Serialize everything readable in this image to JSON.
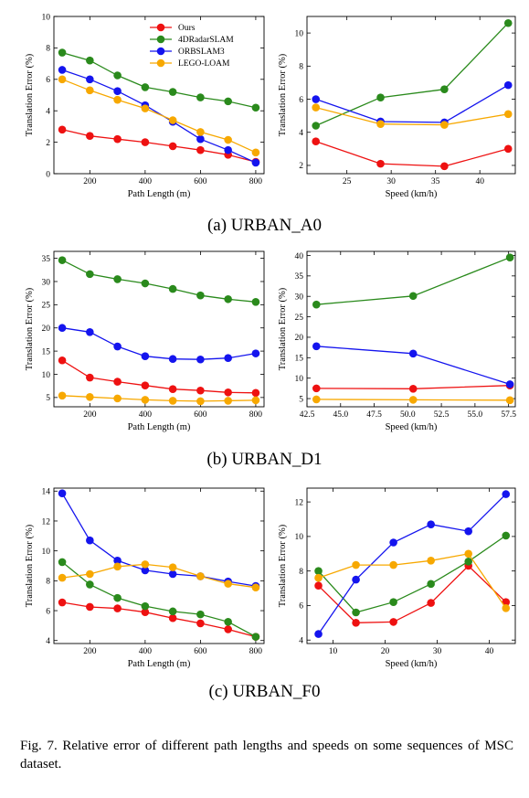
{
  "panel_captions": [
    "(a) URBAN_A0",
    "(b) URBAN_D1",
    "(c) URBAN_F0"
  ],
  "figure_caption": "Fig. 7. Relative error of different path lengths and speeds on some sequences of MSC dataset.",
  "colors": {
    "Ours": "#ee1111",
    "4DRadarSLAM": "#2a8a1c",
    "ORBSLAM3": "#1414ee",
    "LEGO-LOAM": "#f7a800"
  },
  "chart_data": [
    {
      "type": "line",
      "title": "",
      "xlabel": "Path Length (m)",
      "ylabel": "Translation Error (%)",
      "xlim": [
        70,
        830
      ],
      "ylim": [
        0,
        10
      ],
      "xticks": [
        200,
        400,
        600,
        800
      ],
      "yticks": [
        0,
        2,
        4,
        6,
        8,
        10
      ],
      "xticklabels": [
        "200",
        "400",
        "600",
        "800"
      ],
      "yticklabels": [
        "0",
        "2",
        "4",
        "6",
        "8",
        "10"
      ],
      "grid": false,
      "legend": [
        "Ours",
        "4DRadarSLAM",
        "ORBSLAM3",
        "LEGO-LOAM"
      ],
      "legend_position": "top-right",
      "x": [
        100,
        200,
        300,
        400,
        500,
        600,
        700,
        800
      ],
      "series": [
        {
          "name": "Ours",
          "values": [
            2.8,
            2.4,
            2.2,
            2.0,
            1.75,
            1.5,
            1.2,
            0.75
          ]
        },
        {
          "name": "4DRadarSLAM",
          "values": [
            7.7,
            7.2,
            6.25,
            5.5,
            5.2,
            4.85,
            4.6,
            4.2
          ]
        },
        {
          "name": "ORBSLAM3",
          "values": [
            6.6,
            6.0,
            5.25,
            4.35,
            3.3,
            2.2,
            1.5,
            0.7
          ]
        },
        {
          "name": "LEGO-LOAM",
          "values": [
            6.0,
            5.3,
            4.7,
            4.15,
            3.4,
            2.65,
            2.15,
            1.35
          ]
        }
      ]
    },
    {
      "type": "line",
      "title": "",
      "xlabel": "Speed (km/h)",
      "ylabel": "Translation Error (%)",
      "xlim": [
        20.5,
        44
      ],
      "ylim": [
        1.5,
        11
      ],
      "xticks": [
        25,
        30,
        35,
        40
      ],
      "yticks": [
        2,
        4,
        6,
        8,
        10
      ],
      "xticklabels": [
        "25",
        "30",
        "35",
        "40"
      ],
      "yticklabels": [
        "2",
        "4",
        "6",
        "8",
        "10"
      ],
      "grid": false,
      "x": [
        21.5,
        28.8,
        36,
        43.2
      ],
      "series": [
        {
          "name": "Ours",
          "values": [
            3.45,
            2.1,
            1.95,
            3.0
          ]
        },
        {
          "name": "4DRadarSLAM",
          "values": [
            4.4,
            6.1,
            6.6,
            10.6
          ]
        },
        {
          "name": "ORBSLAM3",
          "values": [
            6.0,
            4.65,
            4.6,
            6.85
          ]
        },
        {
          "name": "LEGO-LOAM",
          "values": [
            5.5,
            4.5,
            4.45,
            5.1
          ]
        }
      ]
    },
    {
      "type": "line",
      "title": "",
      "xlabel": "Path Length (m)",
      "ylabel": "Translation Error (%)",
      "xlim": [
        70,
        830
      ],
      "ylim": [
        3,
        36.5
      ],
      "xticks": [
        200,
        400,
        600,
        800
      ],
      "yticks": [
        5,
        10,
        15,
        20,
        25,
        30,
        35
      ],
      "xticklabels": [
        "200",
        "400",
        "600",
        "800"
      ],
      "yticklabels": [
        "5",
        "10",
        "15",
        "20",
        "25",
        "30",
        "35"
      ],
      "grid": false,
      "x": [
        100,
        200,
        300,
        400,
        500,
        600,
        700,
        800
      ],
      "series": [
        {
          "name": "Ours",
          "values": [
            13.0,
            9.3,
            8.4,
            7.6,
            6.8,
            6.5,
            6.1,
            6.0
          ]
        },
        {
          "name": "4DRadarSLAM",
          "values": [
            34.6,
            31.6,
            30.5,
            29.6,
            28.4,
            27.0,
            26.2,
            25.6
          ]
        },
        {
          "name": "ORBSLAM3",
          "values": [
            20.0,
            19.1,
            16.0,
            13.9,
            13.3,
            13.2,
            13.5,
            14.5
          ]
        },
        {
          "name": "LEGO-LOAM",
          "values": [
            5.4,
            5.1,
            4.8,
            4.5,
            4.3,
            4.2,
            4.3,
            4.4
          ]
        }
      ]
    },
    {
      "type": "line",
      "title": "",
      "xlabel": "Speed (km/h)",
      "ylabel": "Translation Error (%)",
      "xlim": [
        42.5,
        58
      ],
      "ylim": [
        3,
        41
      ],
      "xticks": [
        42.5,
        45,
        47.5,
        50,
        52.5,
        55,
        57.5
      ],
      "yticks": [
        5,
        10,
        15,
        20,
        25,
        30,
        35,
        40
      ],
      "xticklabels": [
        "42.5",
        "45.0",
        "47.5",
        "50.0",
        "52.5",
        "55.0",
        "57.5"
      ],
      "yticklabels": [
        "5",
        "10",
        "15",
        "20",
        "25",
        "30",
        "35",
        "40"
      ],
      "grid": false,
      "x": [
        43.2,
        50.4,
        57.6
      ],
      "series": [
        {
          "name": "Ours",
          "values": [
            7.5,
            7.4,
            8.2
          ]
        },
        {
          "name": "4DRadarSLAM",
          "values": [
            28.0,
            30.1,
            39.5
          ]
        },
        {
          "name": "ORBSLAM3",
          "values": [
            17.8,
            16.0,
            8.5
          ]
        },
        {
          "name": "LEGO-LOAM",
          "values": [
            4.8,
            4.7,
            4.6
          ]
        }
      ]
    },
    {
      "type": "line",
      "title": "",
      "xlabel": "Path Length (m)",
      "ylabel": "Translation Error (%)",
      "xlim": [
        70,
        830
      ],
      "ylim": [
        3.8,
        14.2
      ],
      "xticks": [
        200,
        400,
        600,
        800
      ],
      "yticks": [
        4,
        6,
        8,
        10,
        12,
        14
      ],
      "xticklabels": [
        "200",
        "400",
        "600",
        "800"
      ],
      "yticklabels": [
        "4",
        "6",
        "8",
        "10",
        "12",
        "14"
      ],
      "grid": false,
      "x": [
        100,
        200,
        300,
        400,
        500,
        600,
        700,
        800
      ],
      "series": [
        {
          "name": "Ours",
          "values": [
            6.55,
            6.25,
            6.15,
            5.9,
            5.5,
            5.15,
            4.75,
            4.25
          ]
        },
        {
          "name": "4DRadarSLAM",
          "values": [
            9.25,
            7.75,
            6.85,
            6.3,
            5.95,
            5.75,
            5.25,
            4.25
          ]
        },
        {
          "name": "ORBSLAM3",
          "values": [
            13.85,
            10.7,
            9.35,
            8.7,
            8.45,
            8.3,
            7.95,
            7.65
          ]
        },
        {
          "name": "LEGO-LOAM",
          "values": [
            8.2,
            8.45,
            8.95,
            9.1,
            8.9,
            8.3,
            7.8,
            7.55
          ]
        }
      ]
    },
    {
      "type": "line",
      "title": "",
      "xlabel": "Speed (km/h)",
      "ylabel": "Translation Error (%)",
      "xlim": [
        5,
        45
      ],
      "ylim": [
        3.8,
        12.8
      ],
      "xticks": [
        10,
        20,
        30,
        40
      ],
      "yticks": [
        4,
        6,
        8,
        10,
        12
      ],
      "xticklabels": [
        "10",
        "20",
        "30",
        "40"
      ],
      "yticklabels": [
        "4",
        "6",
        "8",
        "10",
        "12"
      ],
      "grid": false,
      "x": [
        7.2,
        14.4,
        21.6,
        28.8,
        36,
        43.2
      ],
      "series": [
        {
          "name": "Ours",
          "values": [
            7.15,
            5.0,
            5.05,
            6.15,
            8.3,
            6.2
          ]
        },
        {
          "name": "4DRadarSLAM",
          "values": [
            8.0,
            5.6,
            6.2,
            7.25,
            8.55,
            10.05
          ]
        },
        {
          "name": "ORBSLAM3",
          "values": [
            4.35,
            7.5,
            9.65,
            10.7,
            10.3,
            12.45
          ]
        },
        {
          "name": "LEGO-LOAM",
          "values": [
            7.6,
            8.35,
            8.35,
            8.6,
            9.0,
            5.85
          ]
        }
      ]
    }
  ]
}
